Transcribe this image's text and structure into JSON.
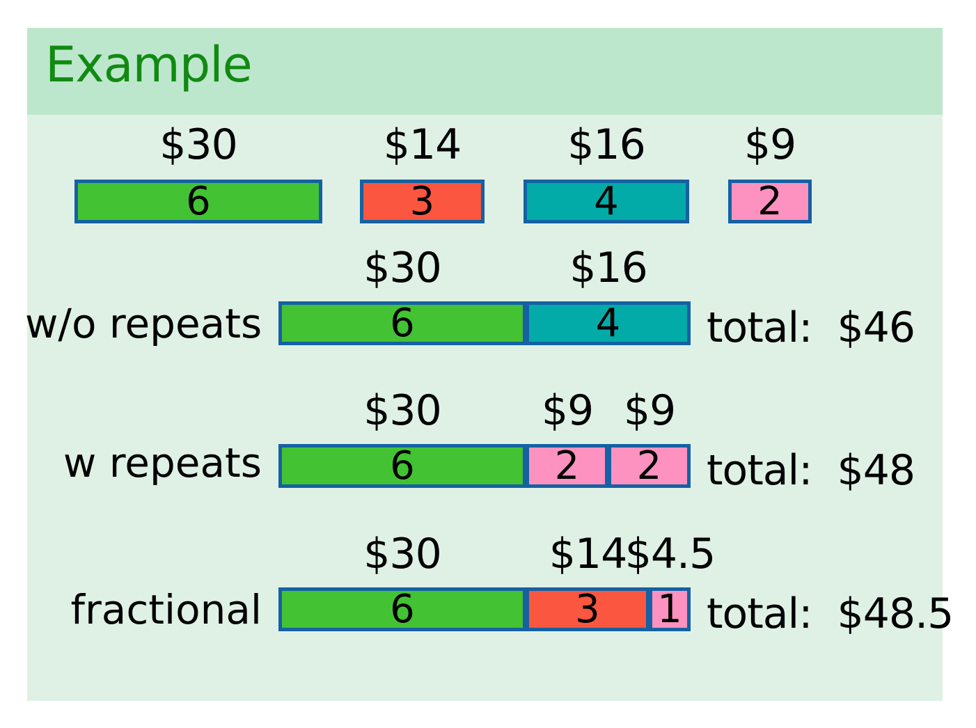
{
  "title": "Example",
  "colors": {
    "green": "#43c233",
    "red": "#fa5640",
    "teal": "#02aba8",
    "pink": "#fd92c0",
    "border": "#1561a3",
    "title_text": "#128a12"
  },
  "items": [
    {
      "price": "$30",
      "weight": "6",
      "color": "green"
    },
    {
      "price": "$14",
      "weight": "3",
      "color": "red"
    },
    {
      "price": "$16",
      "weight": "4",
      "color": "teal"
    },
    {
      "price": "$9",
      "weight": "2",
      "color": "pink"
    }
  ],
  "rows": [
    {
      "label": "w/o repeats",
      "total_label": "total:",
      "total_value": "$46",
      "segments": [
        {
          "price": "$30",
          "weight": "6",
          "color": "green"
        },
        {
          "price": "$16",
          "weight": "4",
          "color": "teal"
        }
      ]
    },
    {
      "label": "w repeats",
      "total_label": "total:",
      "total_value": "$48",
      "segments": [
        {
          "price": "$30",
          "weight": "6",
          "color": "green"
        },
        {
          "price": "$9",
          "weight": "2",
          "color": "pink"
        },
        {
          "price": "$9",
          "weight": "2",
          "color": "pink"
        }
      ]
    },
    {
      "label": "fractional",
      "total_label": "total:",
      "total_value": "$48.5",
      "segments": [
        {
          "price": "$30",
          "weight": "6",
          "color": "green"
        },
        {
          "price": "$14",
          "weight": "3",
          "color": "red"
        },
        {
          "price": "$4.5",
          "weight": "1",
          "color": "pink"
        }
      ]
    }
  ]
}
